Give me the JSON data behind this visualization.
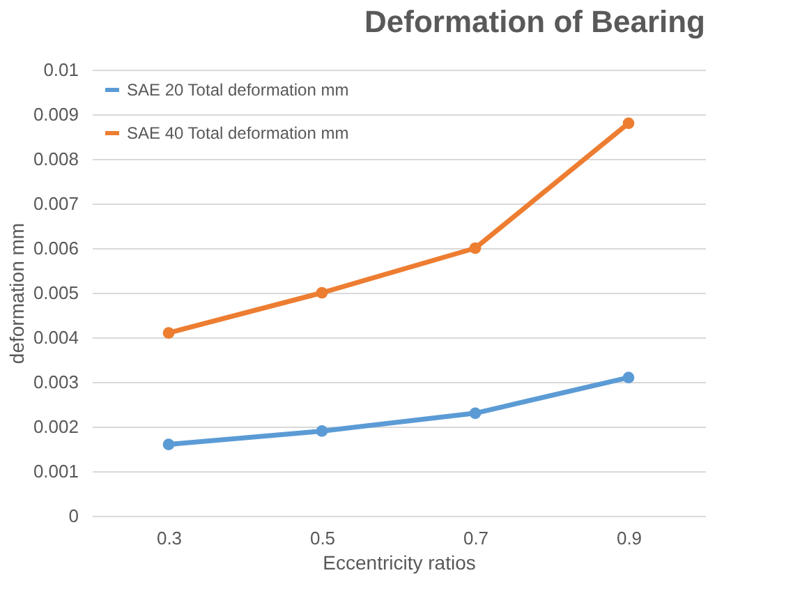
{
  "chart_data": {
    "type": "line",
    "title": "Deformation of Bearing",
    "xlabel": "Eccentricity ratios",
    "ylabel": "deformation mm",
    "categories": [
      "0.3",
      "0.5",
      "0.7",
      "0.9"
    ],
    "series": [
      {
        "name": "SAE 20 Total deformation mm",
        "color": "#5b9bd5",
        "values": [
          0.0016,
          0.0019,
          0.0023,
          0.0031
        ]
      },
      {
        "name": "SAE 40 Total deformation mm",
        "color": "#ed7d31",
        "values": [
          0.0041,
          0.005,
          0.006,
          0.0088
        ]
      }
    ],
    "ylim": [
      0,
      0.01
    ],
    "yticks": [
      0,
      0.001,
      0.002,
      0.003,
      0.004,
      0.005,
      0.006,
      0.007,
      0.008,
      0.009,
      0.01
    ],
    "grid": "y",
    "legend": "top left",
    "marker": "circle",
    "line_style": "solid"
  }
}
